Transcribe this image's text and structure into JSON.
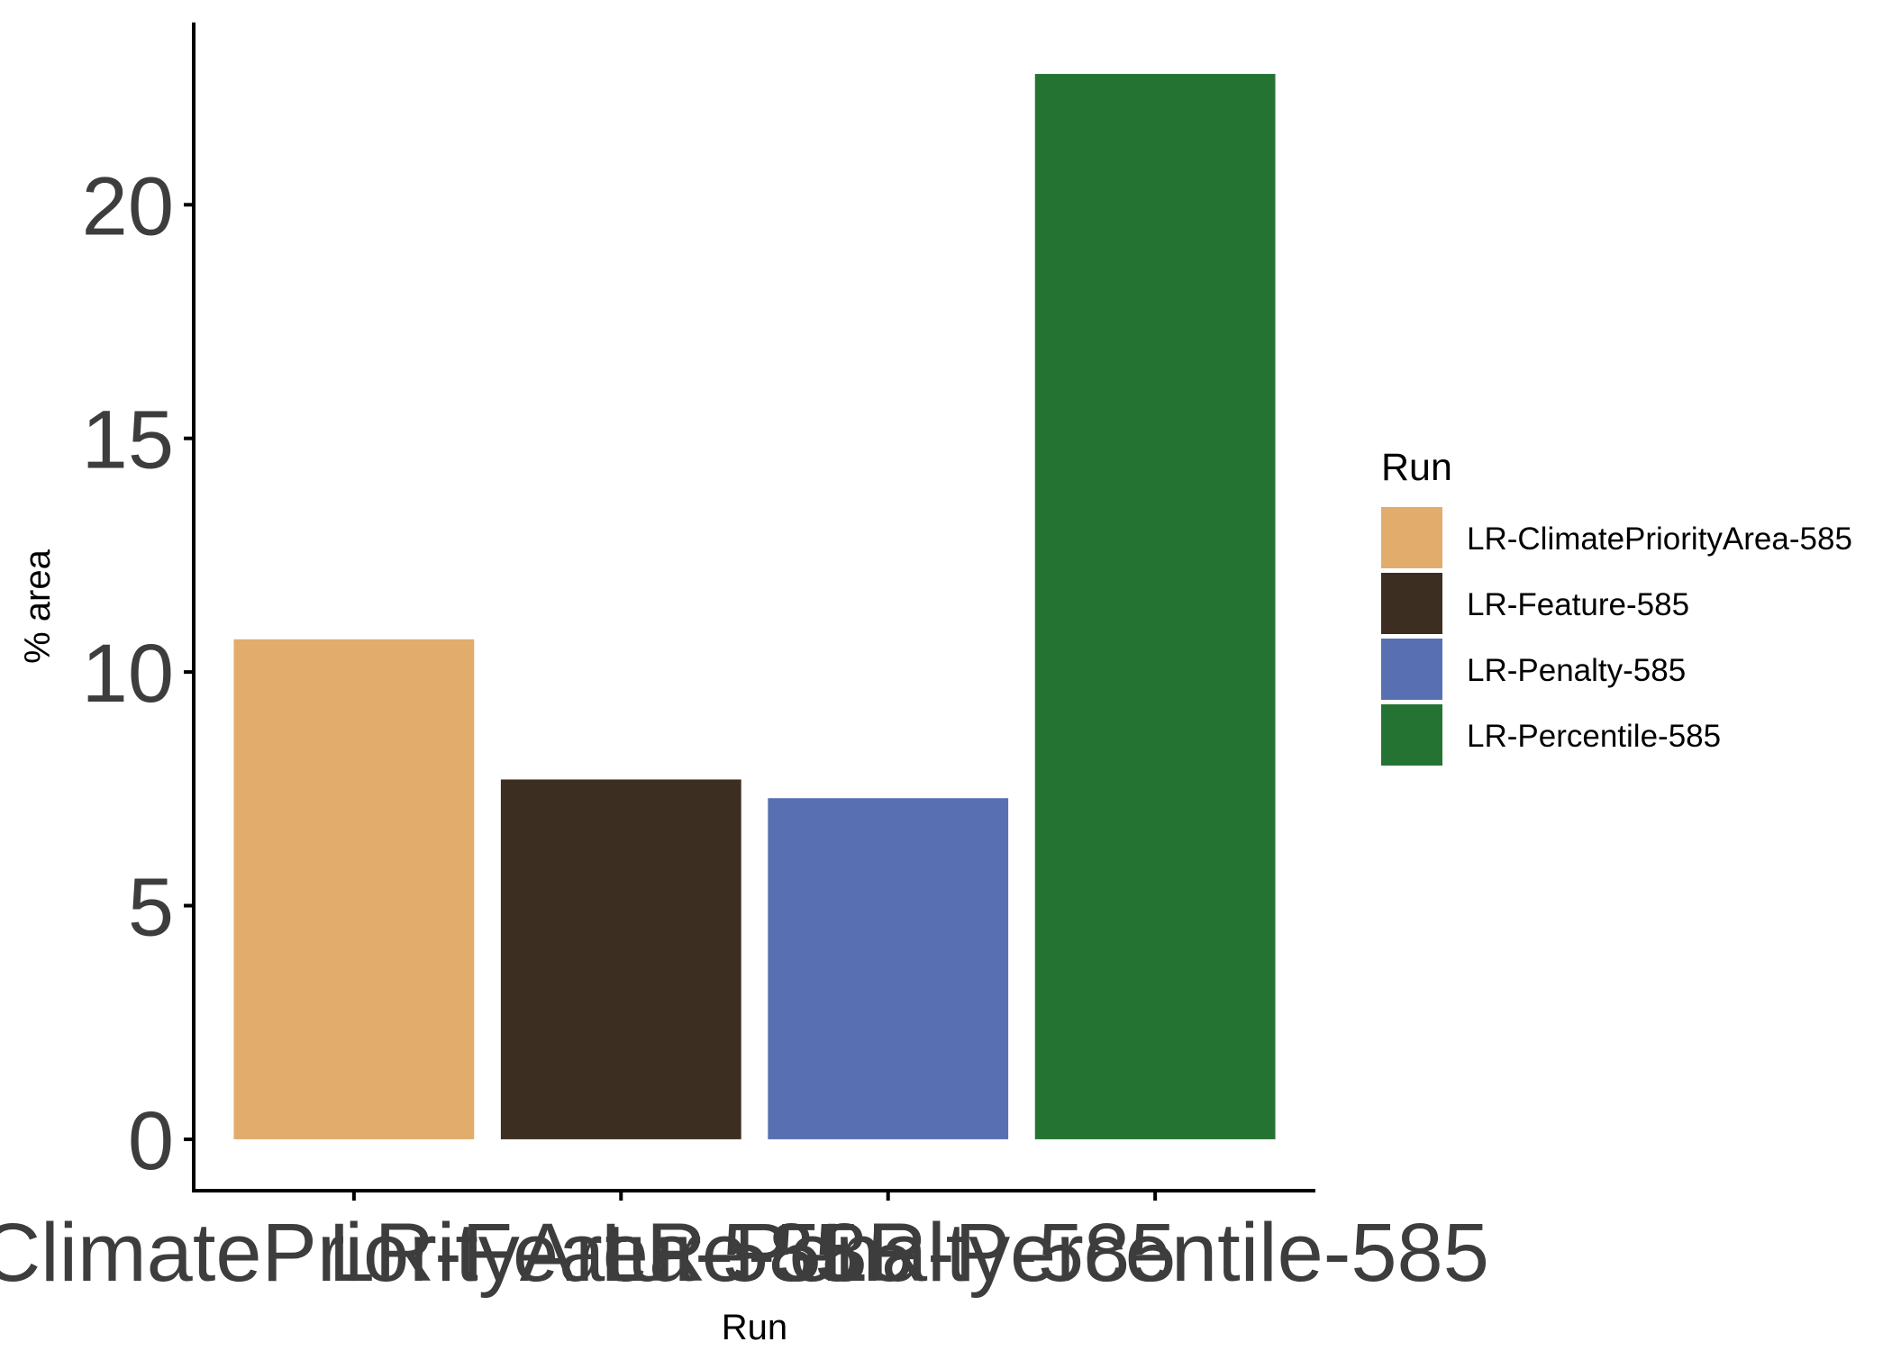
{
  "chart_data": {
    "type": "bar",
    "categories": [
      "LR-ClimatePriorityArea-585",
      "LR-Feature-585",
      "LR-Penalty-585",
      "LR-Percentile-585"
    ],
    "values": [
      10.7,
      7.7,
      7.3,
      22.8
    ],
    "colors": [
      "#E1AC6C",
      "#3D2E22",
      "#5870B2",
      "#257333"
    ],
    "xlabel": "Run",
    "ylabel": "% area",
    "ylim": [
      -1.1,
      23.9
    ],
    "yticks": [
      0,
      5,
      10,
      15,
      20
    ],
    "grid": false,
    "legend": {
      "title": "Run",
      "placement": "right",
      "entries": [
        "LR-ClimatePriorityArea-585",
        "LR-Feature-585",
        "LR-Penalty-585",
        "LR-Percentile-585"
      ]
    }
  }
}
